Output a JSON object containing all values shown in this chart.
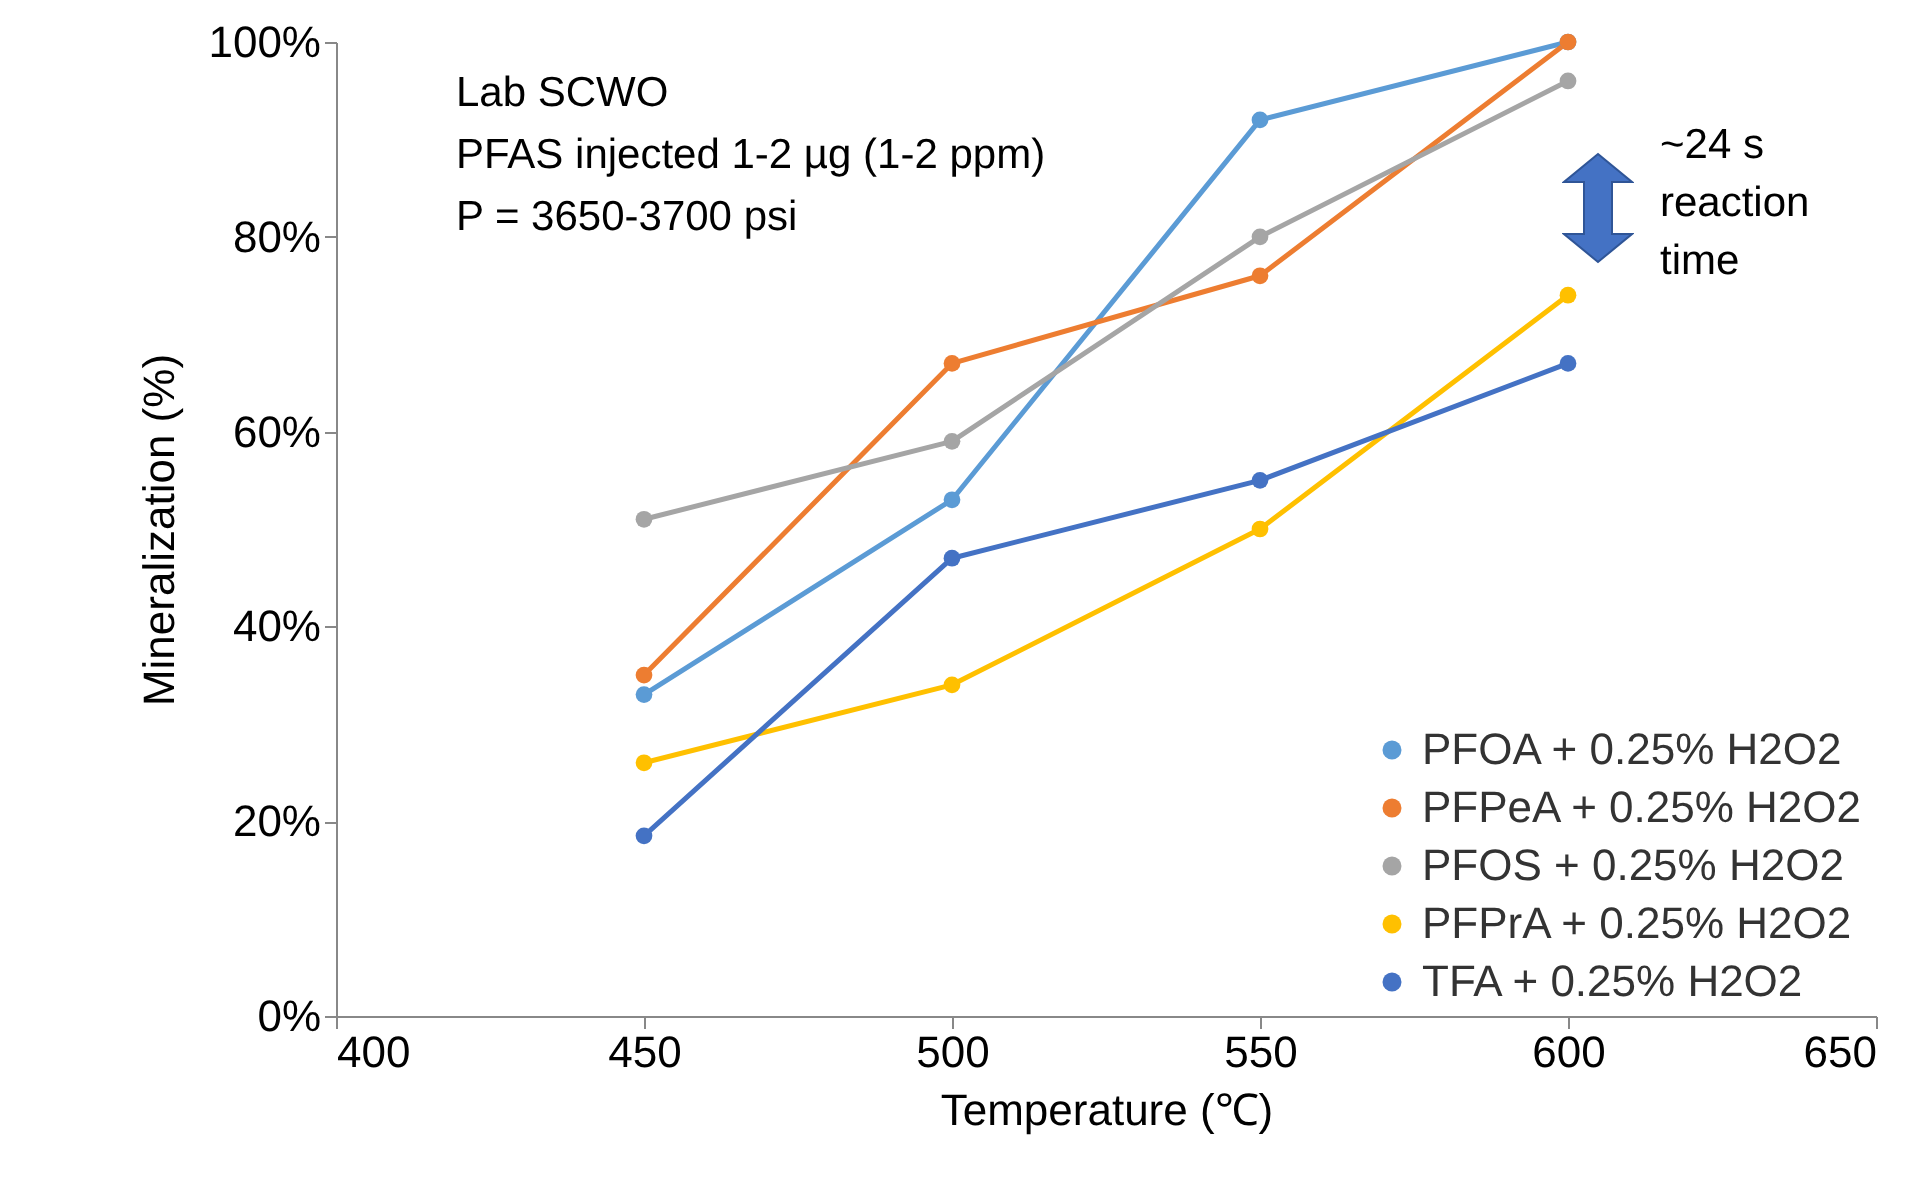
{
  "chart_data": {
    "type": "line",
    "xlabel": "Temperature (℃)",
    "ylabel": "Mineralization (%)",
    "x": [
      450,
      500,
      550,
      600
    ],
    "series": [
      {
        "name": "PFOA + 0.25% H2O2",
        "color": "#5b9bd5",
        "values": [
          33,
          53,
          92,
          100
        ]
      },
      {
        "name": "PFPeA + 0.25% H2O2",
        "color": "#ed7d31",
        "values": [
          35,
          67,
          76,
          100
        ]
      },
      {
        "name": "PFOS + 0.25% H2O2",
        "color": "#a5a5a5",
        "values": [
          51,
          59,
          80,
          96
        ]
      },
      {
        "name": "PFPrA + 0.25% H2O2",
        "color": "#ffc000",
        "values": [
          26,
          34,
          50,
          74
        ]
      },
      {
        "name": "TFA + 0.25% H2O2",
        "color": "#4472c4",
        "values": [
          18.5,
          47,
          55,
          67
        ]
      }
    ],
    "xlim": [
      400,
      650
    ],
    "xticks": [
      400,
      450,
      500,
      550,
      600,
      650
    ],
    "ylim": [
      0,
      100
    ],
    "yticks": [
      {
        "value": 0,
        "label": "0%"
      },
      {
        "value": 20,
        "label": "20%"
      },
      {
        "value": 40,
        "label": "40%"
      },
      {
        "value": 60,
        "label": "60%"
      },
      {
        "value": 80,
        "label": "80%"
      },
      {
        "value": 100,
        "label": "100%"
      }
    ],
    "grid": false,
    "legend": "bottom right",
    "marker": "circle",
    "line_style": "solid",
    "annotations": [
      "Lab SCWO",
      "PFAS injected 1-2 µg (1-2 ppm)",
      "P = 3650-3700 psi",
      "~24 s reaction time"
    ]
  }
}
